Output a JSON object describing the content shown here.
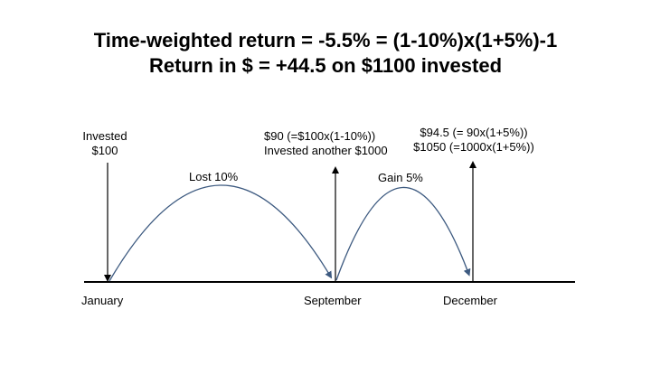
{
  "title": {
    "line1": "Time-weighted return = -5.5% = (1-10%)x(1+5%)-1",
    "line2": "Return in $ = +44.5 on $1100 invested"
  },
  "annotations": {
    "invested_line1": "Invested",
    "invested_line2": "$100",
    "september_line1": "$90 (=$100x(1-10%))",
    "september_line2": "Invested another $1000",
    "december_line1": "$94.5 (= 90x(1+5%))",
    "december_line2": "$1050 (=1000x(1+5%))",
    "lost": "Lost 10%",
    "gain": "Gain 5%"
  },
  "timeline": {
    "labels": [
      "January",
      "September",
      "December"
    ]
  },
  "colors": {
    "curve": "#3d5a80",
    "axis": "#000000"
  }
}
